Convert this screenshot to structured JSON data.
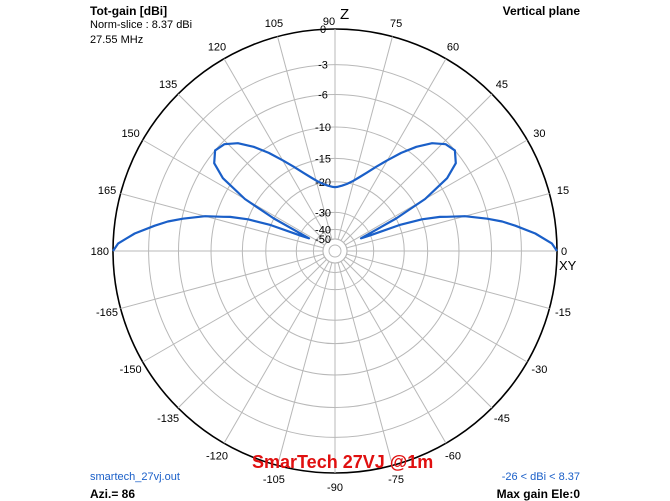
{
  "header": {
    "title": "Tot-gain [dBi]",
    "norm_slice": "Norm-slice : 8.37 dBi",
    "frequency": "27.55 MHz",
    "plane": "Vertical plane"
  },
  "footer": {
    "filename": "smartech_27vj.out",
    "azimuth": "Azi.= 86",
    "caption": "SmarTech 27VJ @1m",
    "range": "-26 < dBi < 8.37",
    "max_gain": "Max gain Ele:0"
  },
  "axis_labels": {
    "zenith": "Z",
    "horizon": "XY"
  },
  "colors": {
    "pattern": "#1a5fc8",
    "grid": "#b8b8b8",
    "outer": "#000000",
    "caption": "#e01010"
  },
  "chart_data": {
    "type": "polar",
    "angle_ticks": [
      "0",
      "15",
      "30",
      "45",
      "60",
      "75",
      "90",
      "105",
      "120",
      "135",
      "150",
      "165",
      "180",
      "-165",
      "-150",
      "-135",
      "-120",
      "-105",
      "-90",
      "-75",
      "-60",
      "-45",
      "-30",
      "-15"
    ],
    "angle_values": [
      0,
      15,
      30,
      45,
      60,
      75,
      90,
      105,
      120,
      135,
      150,
      165,
      180,
      -165,
      -150,
      -135,
      -120,
      -105,
      -90,
      -75,
      -60,
      -45,
      -30,
      -15
    ],
    "radial_ticks": [
      "0",
      "-3",
      "-6",
      "-10",
      "-15",
      "-20",
      "-30",
      "-40",
      "-50"
    ],
    "radial_values": [
      0,
      -3,
      -6,
      -10,
      -15,
      -20,
      -30,
      -40,
      -50
    ],
    "series": [
      {
        "points": [
          [
            0,
            0
          ],
          [
            2,
            -0.4
          ],
          [
            5,
            -1.7
          ],
          [
            8,
            -3.4
          ],
          [
            10,
            -4.6
          ],
          [
            12,
            -6.1
          ],
          [
            15,
            -8.6
          ],
          [
            17,
            -11
          ],
          [
            18,
            -12
          ],
          [
            20,
            -15
          ],
          [
            22,
            -20
          ],
          [
            24,
            -30
          ],
          [
            26,
            -35
          ],
          [
            28,
            -20
          ],
          [
            30,
            -13
          ],
          [
            33,
            -8.7
          ],
          [
            36,
            -6.8
          ],
          [
            40,
            -6
          ],
          [
            44,
            -6.3
          ],
          [
            48,
            -7.3
          ],
          [
            52,
            -8.9
          ],
          [
            56,
            -10.8
          ],
          [
            60,
            -12.9
          ],
          [
            64,
            -14.8
          ],
          [
            68,
            -16.6
          ],
          [
            72,
            -18.1
          ],
          [
            76,
            -19.4
          ],
          [
            80,
            -20.3
          ],
          [
            84,
            -20.9
          ],
          [
            88,
            -21.3
          ],
          [
            90,
            -21.4
          ],
          [
            92,
            -21.3
          ],
          [
            96,
            -20.9
          ],
          [
            100,
            -20.3
          ],
          [
            104,
            -19.4
          ],
          [
            108,
            -18.1
          ],
          [
            112,
            -16.6
          ],
          [
            116,
            -14.8
          ],
          [
            120,
            -12.9
          ],
          [
            124,
            -10.8
          ],
          [
            128,
            -8.9
          ],
          [
            132,
            -7.3
          ],
          [
            136,
            -6.3
          ],
          [
            140,
            -6
          ],
          [
            144,
            -6.8
          ],
          [
            147,
            -8.7
          ],
          [
            150,
            -13
          ],
          [
            152,
            -20
          ],
          [
            154,
            -35
          ],
          [
            156,
            -30
          ],
          [
            158,
            -20
          ],
          [
            160,
            -15
          ],
          [
            162,
            -12
          ],
          [
            163,
            -11
          ],
          [
            165,
            -8.6
          ],
          [
            168,
            -6.1
          ],
          [
            170,
            -4.6
          ],
          [
            172,
            -3.4
          ],
          [
            175,
            -1.7
          ],
          [
            178,
            -0.4
          ],
          [
            180,
            0
          ]
        ]
      }
    ]
  }
}
